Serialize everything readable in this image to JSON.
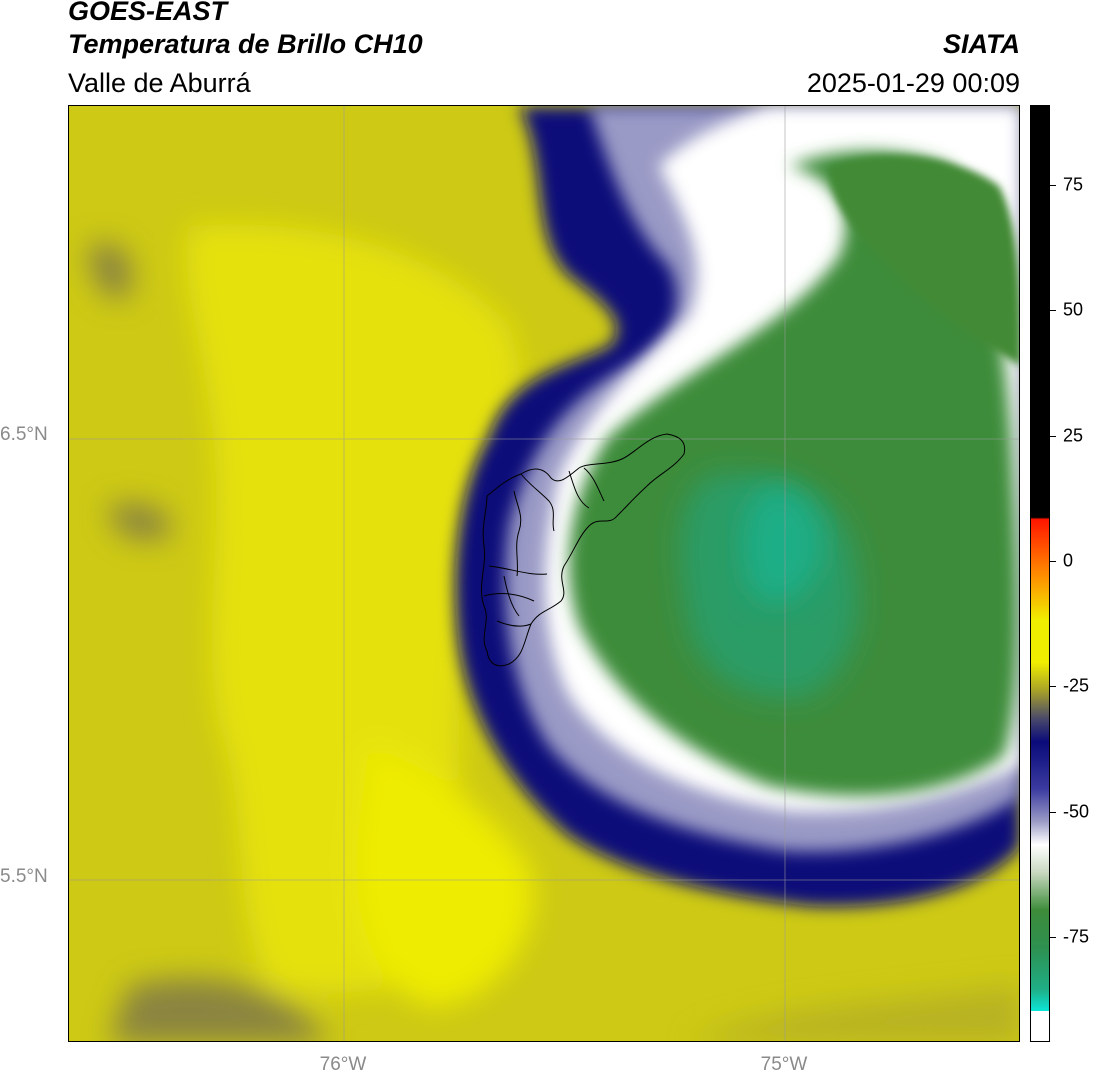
{
  "header": {
    "satellite": "GOES-EAST",
    "product": "Temperatura de Brillo CH10",
    "region": "Valle de Aburrá",
    "agency": "SIATA",
    "timestamp": "2025-01-29 00:09"
  },
  "map": {
    "lat_labels": [
      "6.5°N",
      "5.5°N"
    ],
    "lon_labels": [
      "76°W",
      "75°W"
    ],
    "gridline_color": "#9a9a9a",
    "boundary_color": "#000000"
  },
  "colorbar": {
    "tick_labels": [
      "75",
      "50",
      "25",
      "0",
      "-25",
      "-50",
      "-75"
    ],
    "tick_values": [
      75,
      50,
      25,
      0,
      -25,
      -50,
      -75
    ],
    "range": [
      -96,
      91
    ],
    "colors": {
      "black": "#000000",
      "red": "#ff1500",
      "orange": "#ff8a00",
      "yellow": "#f0ee00",
      "olive": "#a8a228",
      "navy": "#0a0a7a",
      "blue_gray": "#9a9ac6",
      "white": "#ffffff",
      "green": "#3d8c3a",
      "teal": "#1fae86",
      "cyan": "#0ce6d8"
    }
  }
}
